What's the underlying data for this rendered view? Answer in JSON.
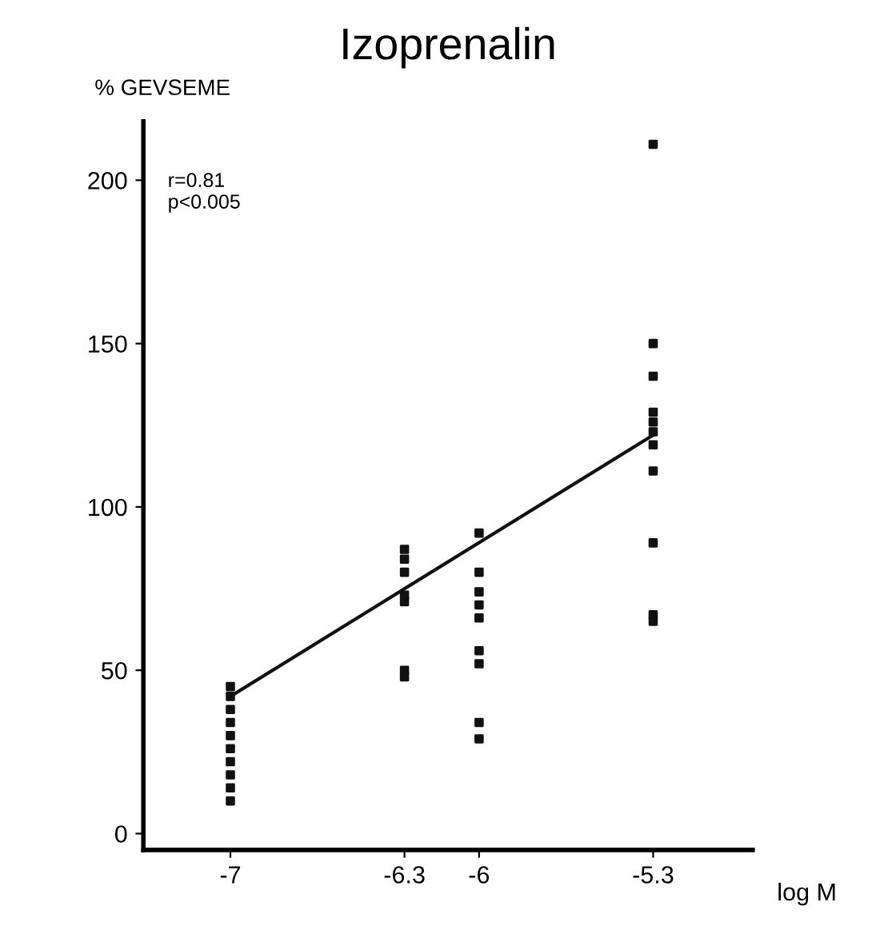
{
  "chart_data": {
    "type": "scatter",
    "title": "Izoprenalin",
    "xlabel": "log M",
    "ylabel": "% GEVSEME",
    "annotations": [
      "r=0.81\np<0.005"
    ],
    "xlim": [
      -7.35,
      -4.9
    ],
    "ylim": [
      -5,
      218
    ],
    "xticks": [
      -7,
      {
        "value": -6.3,
        "label": "-6.3"
      },
      -6,
      {
        "value": -5.3,
        "label": "-5.3"
      }
    ],
    "yticks": [
      0,
      50,
      100,
      150,
      200
    ],
    "grid": false,
    "legend": false,
    "marker": "square",
    "series": [
      {
        "color": "#111111",
        "x": [
          -7,
          -7,
          -7,
          -7,
          -7,
          -7,
          -7,
          -7,
          -7,
          -7,
          -6.3,
          -6.3,
          -6.3,
          -6.3,
          -6.3,
          -6.3,
          -6.3,
          -6,
          -6,
          -6,
          -6,
          -6,
          -6,
          -6,
          -6,
          -6,
          -5.3,
          -5.3,
          -5.3,
          -5.3,
          -5.3,
          -5.3,
          -5.3,
          -5.3,
          -5.3,
          -5.3,
          -5.3
        ],
        "values": [
          45,
          42,
          38,
          34,
          30,
          26,
          22,
          18,
          14,
          10,
          87,
          84,
          80,
          73,
          71,
          50,
          48,
          92,
          80,
          74,
          70,
          66,
          56,
          52,
          34,
          29,
          211,
          150,
          140,
          129,
          126,
          123,
          119,
          111,
          89,
          67,
          65
        ]
      },
      {
        "type": "line",
        "color": "#111111",
        "x": [
          -7,
          -5.3
        ],
        "values": [
          42,
          122
        ],
        "marker": "none",
        "line_style": "solid"
      }
    ]
  }
}
